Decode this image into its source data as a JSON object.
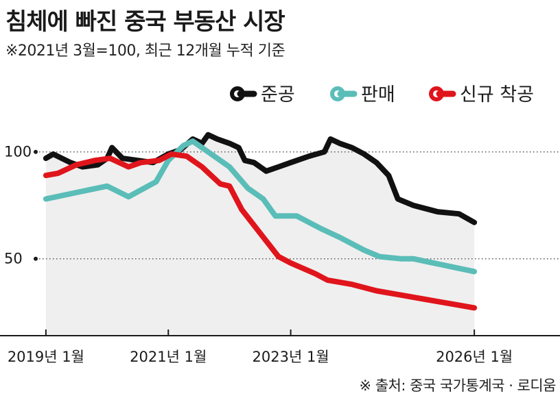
{
  "chart_data": {
    "type": "line",
    "title": "침체에 빠진 중국 부동산 시장",
    "subtitle": "※2021년 3월=100, 최근 12개월 누적 기준",
    "source": "※ 출처: 중국 국가통계국 · 로디움",
    "x_ticks": [
      {
        "label": "2019년 1월",
        "value": 2019.0
      },
      {
        "label": "2021년 1월",
        "value": 2021.0
      },
      {
        "label": "2023년 1월",
        "value": 2023.0
      },
      {
        "label": "2026년 1월",
        "value": 2026.0
      }
    ],
    "y_ticks": [
      {
        "label": "100",
        "value": 100
      },
      {
        "label": "50",
        "value": 50
      }
    ],
    "xlim": [
      2018.25,
      2027.4
    ],
    "ylim": [
      14,
      123
    ],
    "grid": "dotted-horizontal",
    "legend_position": "top-right",
    "series": [
      {
        "name": "준공",
        "color": "#111111",
        "points": [
          [
            2019.0,
            97
          ],
          [
            2019.12,
            99
          ],
          [
            2019.4,
            95
          ],
          [
            2019.6,
            93
          ],
          [
            2019.85,
            94
          ],
          [
            2020.0,
            97
          ],
          [
            2020.08,
            102
          ],
          [
            2020.25,
            97
          ],
          [
            2020.5,
            96
          ],
          [
            2020.75,
            95
          ],
          [
            2021.0,
            99
          ],
          [
            2021.2,
            101
          ],
          [
            2021.4,
            106
          ],
          [
            2021.55,
            104
          ],
          [
            2021.65,
            108
          ],
          [
            2021.8,
            106
          ],
          [
            2022.0,
            104
          ],
          [
            2022.15,
            102
          ],
          [
            2022.25,
            96
          ],
          [
            2022.4,
            95
          ],
          [
            2022.6,
            91
          ],
          [
            2022.8,
            93
          ],
          [
            2023.0,
            95
          ],
          [
            2023.3,
            98
          ],
          [
            2023.55,
            100
          ],
          [
            2023.65,
            106
          ],
          [
            2023.8,
            104
          ],
          [
            2024.0,
            102
          ],
          [
            2024.2,
            99
          ],
          [
            2024.4,
            95
          ],
          [
            2024.6,
            89
          ],
          [
            2024.75,
            78
          ],
          [
            2025.0,
            75
          ],
          [
            2025.4,
            72
          ],
          [
            2025.75,
            71
          ],
          [
            2026.0,
            67
          ]
        ]
      },
      {
        "name": "판매",
        "color": "#5bbdb8",
        "points": [
          [
            2019.0,
            78
          ],
          [
            2019.5,
            81
          ],
          [
            2020.0,
            84
          ],
          [
            2020.35,
            79
          ],
          [
            2020.8,
            86
          ],
          [
            2021.0,
            96
          ],
          [
            2021.25,
            103
          ],
          [
            2021.4,
            105
          ],
          [
            2021.7,
            99
          ],
          [
            2022.0,
            93
          ],
          [
            2022.3,
            83
          ],
          [
            2022.55,
            78
          ],
          [
            2022.75,
            70
          ],
          [
            2023.1,
            70
          ],
          [
            2023.5,
            64
          ],
          [
            2023.8,
            60
          ],
          [
            2024.2,
            54
          ],
          [
            2024.45,
            51
          ],
          [
            2024.8,
            50
          ],
          [
            2025.0,
            50
          ],
          [
            2025.5,
            47
          ],
          [
            2026.0,
            44
          ]
        ]
      },
      {
        "name": "신규 착공",
        "color": "#e0151c",
        "points": [
          [
            2019.0,
            89
          ],
          [
            2019.2,
            90
          ],
          [
            2019.5,
            94
          ],
          [
            2019.8,
            96
          ],
          [
            2020.05,
            97
          ],
          [
            2020.35,
            93
          ],
          [
            2020.55,
            95
          ],
          [
            2020.85,
            96
          ],
          [
            2021.05,
            99
          ],
          [
            2021.3,
            98
          ],
          [
            2021.55,
            93
          ],
          [
            2021.85,
            85
          ],
          [
            2022.0,
            84
          ],
          [
            2022.2,
            73
          ],
          [
            2022.5,
            62
          ],
          [
            2022.8,
            51
          ],
          [
            2023.0,
            48
          ],
          [
            2023.4,
            43
          ],
          [
            2023.6,
            40
          ],
          [
            2024.0,
            38
          ],
          [
            2024.4,
            35
          ],
          [
            2024.8,
            33
          ],
          [
            2025.2,
            31
          ],
          [
            2025.6,
            29
          ],
          [
            2026.0,
            27
          ]
        ]
      }
    ]
  }
}
